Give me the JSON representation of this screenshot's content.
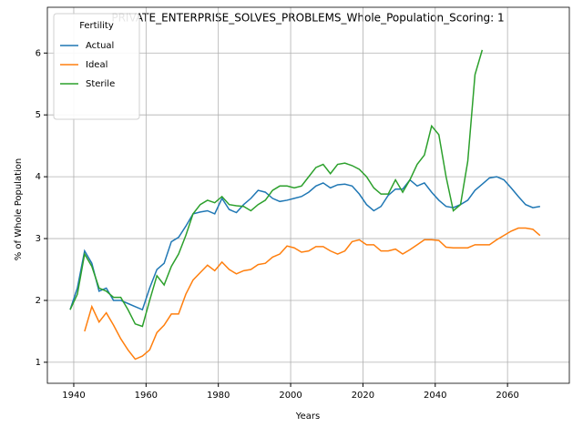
{
  "chart_data": {
    "type": "line",
    "title": "PRIVATE_ENTERPRISE_SOLVES_PROBLEMS_Whole_Population_Scoring: 1",
    "x_label": "Years",
    "y_label": "% of Whole Population",
    "legend_title": "Fertility",
    "legend_position": "upper-left",
    "grid": true,
    "x": [
      1939,
      1941,
      1943,
      1945,
      1947,
      1949,
      1951,
      1953,
      1955,
      1957,
      1959,
      1961,
      1963,
      1965,
      1967,
      1969,
      1971,
      1973,
      1975,
      1977,
      1979,
      1981,
      1983,
      1985,
      1987,
      1989,
      1991,
      1993,
      1995,
      1997,
      1999,
      2001,
      2003,
      2005,
      2007,
      2009,
      2011,
      2013,
      2015,
      2017,
      2019,
      2021,
      2023,
      2025,
      2027,
      2029,
      2031,
      2033,
      2035,
      2037,
      2039,
      2041,
      2043,
      2045,
      2047,
      2049,
      2051,
      2053,
      2055,
      2057,
      2059,
      2061,
      2063,
      2065,
      2067,
      2069
    ],
    "series": [
      {
        "name": "Actual",
        "color": "#1f77b4",
        "values": [
          1.85,
          2.2,
          2.8,
          2.6,
          2.15,
          2.2,
          2.0,
          2.0,
          1.95,
          1.9,
          1.85,
          2.2,
          2.5,
          2.6,
          2.95,
          3.02,
          3.2,
          3.4,
          3.43,
          3.45,
          3.4,
          3.65,
          3.47,
          3.42,
          3.55,
          3.65,
          3.78,
          3.75,
          3.65,
          3.6,
          3.62,
          3.65,
          3.68,
          3.75,
          3.85,
          3.9,
          3.82,
          3.87,
          3.88,
          3.85,
          3.72,
          3.55,
          3.45,
          3.52,
          3.7,
          3.8,
          3.8,
          3.95,
          3.85,
          3.9,
          3.75,
          3.62,
          3.52,
          3.5,
          3.55,
          3.62,
          3.78,
          3.88,
          3.98,
          4.0,
          3.95,
          3.82,
          3.68,
          3.55,
          3.5,
          3.52
        ]
      },
      {
        "name": "Ideal",
        "color": "#ff7f0e",
        "values": [
          null,
          null,
          1.5,
          1.9,
          1.65,
          1.8,
          1.6,
          1.38,
          1.2,
          1.05,
          1.1,
          1.2,
          1.48,
          1.6,
          1.78,
          1.78,
          2.1,
          2.33,
          2.45,
          2.57,
          2.48,
          2.62,
          2.5,
          2.43,
          2.48,
          2.5,
          2.58,
          2.6,
          2.7,
          2.75,
          2.88,
          2.85,
          2.78,
          2.8,
          2.87,
          2.87,
          2.8,
          2.75,
          2.8,
          2.95,
          2.98,
          2.9,
          2.9,
          2.8,
          2.8,
          2.83,
          2.75,
          2.82,
          2.9,
          2.98,
          2.98,
          2.97,
          2.86,
          2.85,
          2.85,
          2.85,
          2.9,
          2.9,
          2.9,
          2.98,
          3.05,
          3.12,
          3.17,
          3.17,
          3.15,
          3.05
        ]
      },
      {
        "name": "Sterile",
        "color": "#2ca02c",
        "values": [
          1.85,
          2.1,
          2.75,
          2.55,
          2.2,
          2.15,
          2.05,
          2.05,
          1.85,
          1.62,
          1.58,
          2.0,
          2.4,
          2.25,
          2.55,
          2.75,
          3.05,
          3.4,
          3.55,
          3.62,
          3.58,
          3.68,
          3.55,
          3.53,
          3.52,
          3.45,
          3.55,
          3.62,
          3.78,
          3.85,
          3.85,
          3.82,
          3.85,
          4.0,
          4.15,
          4.2,
          4.05,
          4.2,
          4.22,
          4.18,
          4.12,
          4.0,
          3.82,
          3.72,
          3.72,
          3.95,
          3.75,
          3.95,
          4.2,
          4.35,
          4.82,
          4.68,
          4.0,
          3.45,
          3.55,
          4.25,
          5.65,
          6.05,
          null,
          null,
          null,
          null,
          null,
          null,
          null,
          null
        ]
      }
    ],
    "xlim": [
      1932.7,
      2077.1
    ],
    "xticks": [
      1940,
      1960,
      1980,
      2000,
      2020,
      2040,
      2060
    ],
    "ylim": [
      0.66,
      6.74
    ],
    "yticks": [
      1,
      2,
      3,
      4,
      5,
      6
    ]
  }
}
